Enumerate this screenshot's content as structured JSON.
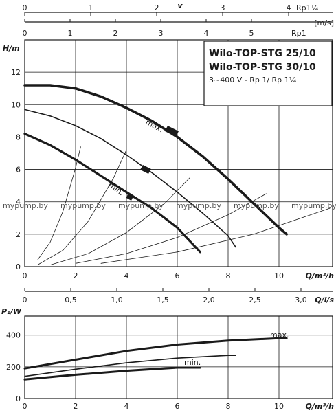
{
  "chart_data": [
    {
      "type": "line",
      "chart_name": "pump-curve-head",
      "title_lines": [
        "Wilo-TOP-STG 25/10",
        "Wilo-TOP-STG 30/10"
      ],
      "subtitle": "3~400 V - Rp 1/ Rp 1¼",
      "ylabel": "H/m",
      "xlabel": "Q/m³/h",
      "xlim": [
        0,
        12
      ],
      "ylim": [
        0,
        14
      ],
      "x_ticks": [
        "0",
        "2",
        "4",
        "6",
        "8",
        "10"
      ],
      "y_ticks": [
        "0",
        "2",
        "4",
        "6",
        "8",
        "10",
        "12"
      ],
      "grid": true,
      "annotations": [
        "max.",
        "min."
      ],
      "watermark": [
        "mypump.by",
        "mypump.by",
        "mypump.by",
        "mypump.by",
        "mypump.by",
        "mypump.by"
      ],
      "velocity_axis": {
        "label": "v",
        "unit": "[m/s]",
        "upper_label": "Rp1¼",
        "lower_label": "Rp1",
        "upper_ticks": [
          "0",
          "1",
          "2",
          "3",
          "4"
        ],
        "lower_ticks": [
          "0",
          "1",
          "2",
          "3",
          "4",
          "5"
        ]
      },
      "flow_ls_axis": {
        "label": "Q/l/s",
        "ticks": [
          "0",
          "0,5",
          "1,0",
          "1,5",
          "2,0",
          "2,5",
          "3,0"
        ]
      },
      "series": [
        {
          "name": "max.",
          "x": [
            0,
            1,
            2,
            3,
            4,
            5,
            6,
            7,
            8,
            9,
            10,
            10.3
          ],
          "y": [
            11.2,
            11.2,
            11.0,
            10.5,
            9.8,
            9.0,
            8.0,
            6.8,
            5.4,
            3.9,
            2.4,
            2.0
          ]
        },
        {
          "name": "",
          "x": [
            0,
            1,
            2,
            3,
            4,
            5,
            6,
            7,
            8,
            8.3
          ],
          "y": [
            9.7,
            9.3,
            8.7,
            7.9,
            6.9,
            5.8,
            4.6,
            3.3,
            1.9,
            1.2
          ]
        },
        {
          "name": "min.",
          "x": [
            0,
            1,
            2,
            3,
            4,
            5,
            6,
            6.9
          ],
          "y": [
            8.2,
            7.5,
            6.6,
            5.6,
            4.6,
            3.6,
            2.4,
            0.9
          ]
        },
        {
          "name": "",
          "x": [
            0.5,
            1.0,
            1.5,
            2.0,
            2.2
          ],
          "y": [
            0.4,
            1.5,
            3.4,
            6.1,
            7.4
          ]
        },
        {
          "name": "",
          "x": [
            0.5,
            1.5,
            2.5,
            3.5,
            4.0
          ],
          "y": [
            0.1,
            1.0,
            2.8,
            5.5,
            7.2
          ]
        },
        {
          "name": "",
          "x": [
            1.0,
            2.5,
            4.0,
            5.5,
            6.5
          ],
          "y": [
            0.1,
            0.8,
            2.1,
            3.9,
            5.5
          ]
        },
        {
          "name": "",
          "x": [
            2.0,
            4.0,
            6.0,
            8.0,
            9.5
          ],
          "y": [
            0.2,
            0.8,
            1.8,
            3.2,
            4.5
          ]
        },
        {
          "name": "",
          "x": [
            3.0,
            6.0,
            9.0,
            12.0
          ],
          "y": [
            0.2,
            0.9,
            2.0,
            3.6
          ]
        }
      ]
    },
    {
      "type": "line",
      "chart_name": "pump-power",
      "ylabel": "P₁/W",
      "xlabel": "Q/m³/h",
      "xlim": [
        0,
        12
      ],
      "ylim": [
        0,
        520
      ],
      "x_ticks": [
        "0",
        "2",
        "4",
        "6",
        "8",
        "10"
      ],
      "y_ticks": [
        "0",
        "200",
        "400"
      ],
      "grid": true,
      "series": [
        {
          "name": "max.",
          "x": [
            0,
            2,
            4,
            6,
            8,
            10,
            10.3
          ],
          "y": [
            190,
            245,
            300,
            340,
            365,
            380,
            380
          ]
        },
        {
          "name": "min.",
          "x": [
            0,
            2,
            4,
            6,
            6.9
          ],
          "y": [
            120,
            150,
            175,
            195,
            195
          ]
        },
        {
          "name": "",
          "x": [
            0,
            2,
            4,
            6,
            8,
            8.3
          ],
          "y": [
            140,
            185,
            225,
            255,
            272,
            272
          ]
        }
      ]
    }
  ]
}
